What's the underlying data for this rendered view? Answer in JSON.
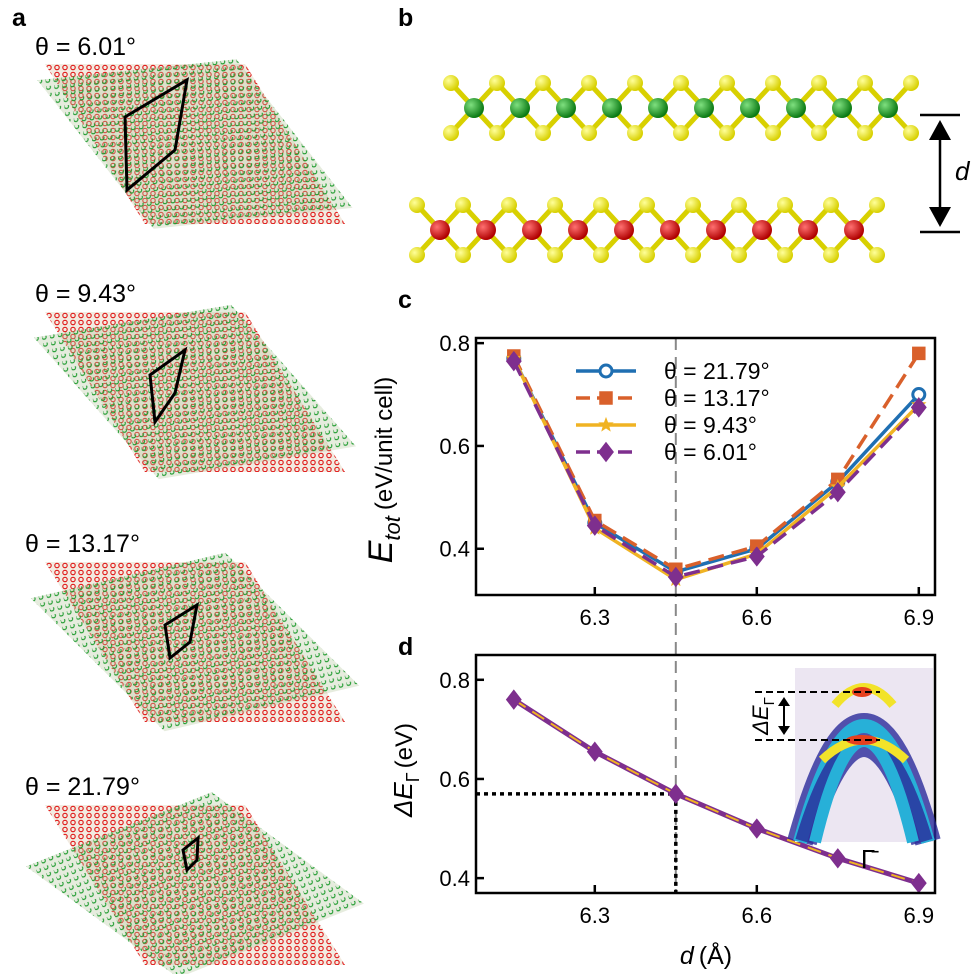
{
  "figure": {
    "panel_labels": [
      "a",
      "b",
      "c",
      "d"
    ],
    "lattice_labels": [
      "θ = 6.01°",
      "θ = 9.43°",
      "θ = 13.17°",
      "θ = 21.79°"
    ],
    "structure_label": "d"
  },
  "chart_data": [
    {
      "type": "line",
      "y_label": {
        "main": "E",
        "sub": "tot",
        "unit": "(eV/unit cell)"
      },
      "x": [
        6.15,
        6.3,
        6.45,
        6.6,
        6.75,
        6.9
      ],
      "series": [
        {
          "name": "θ = 21.79°",
          "color": "#1f6fb2",
          "linestyle": "solid",
          "marker": "circle",
          "values": [
            0.77,
            0.45,
            0.355,
            0.4,
            0.53,
            0.7
          ]
        },
        {
          "name": "θ = 13.17°",
          "color": "#d9602b",
          "linestyle": "dashed",
          "marker": "square",
          "values": [
            0.775,
            0.455,
            0.36,
            0.405,
            0.535,
            0.78
          ]
        },
        {
          "name": "θ = 9.43°",
          "color": "#f0b323",
          "linestyle": "solid",
          "marker": "star",
          "values": [
            0.77,
            0.44,
            0.34,
            0.39,
            0.52,
            0.68
          ]
        },
        {
          "name": "θ = 6.01°",
          "color": "#7e2f8e",
          "linestyle": "dashed",
          "marker": "diamond",
          "values": [
            0.765,
            0.445,
            0.345,
            0.385,
            0.51,
            0.675
          ]
        }
      ],
      "xlim": [
        6.08,
        6.93
      ],
      "ylim": [
        0.31,
        0.81
      ],
      "xticks": [
        6.3,
        6.6,
        6.9
      ],
      "yticks": [
        0.4,
        0.6,
        0.8
      ],
      "legend": "upper right",
      "guide_x": 6.45
    },
    {
      "type": "line",
      "y_label": {
        "main": "ΔE",
        "sub": "Γ",
        "unit": "(eV)"
      },
      "x_label": {
        "symbol": "d",
        "unit": "(Å)"
      },
      "x": [
        6.15,
        6.3,
        6.45,
        6.6,
        6.75,
        6.9
      ],
      "values": [
        0.76,
        0.655,
        0.57,
        0.5,
        0.44,
        0.39
      ],
      "color": "#7e2f8e",
      "overlay_color": "#f0b323",
      "marker": "diamond",
      "xlim": [
        6.08,
        6.93
      ],
      "ylim": [
        0.37,
        0.85
      ],
      "xticks": [
        6.3,
        6.6,
        6.9
      ],
      "yticks": [
        0.4,
        0.6,
        0.8
      ],
      "highlight": {
        "x": 6.45,
        "y": 0.57
      },
      "inset": {
        "label_main": "ΔE",
        "label_sub": "Γ",
        "point": "Γ̄"
      }
    }
  ]
}
